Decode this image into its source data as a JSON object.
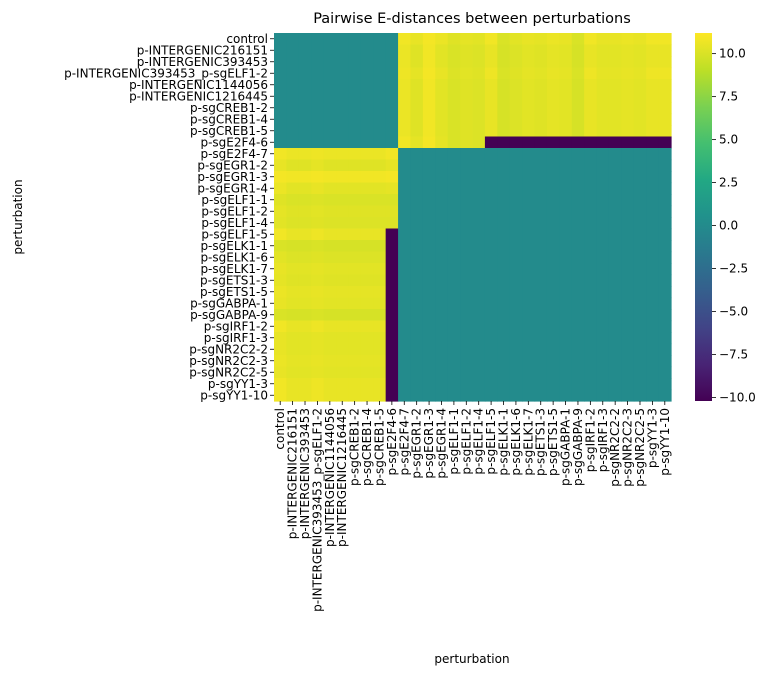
{
  "chart_data": {
    "type": "heatmap",
    "title": "Pairwise E-distances between perturbations",
    "xlabel": "perturbation",
    "ylabel": "perturbation",
    "colormap": "viridis",
    "vmin": -10.2,
    "vmax": 11.2,
    "colorbar_ticks": [
      "10.0",
      "7.5",
      "5.0",
      "2.5",
      "0.0",
      "−2.5",
      "−5.0",
      "−7.5",
      "−10.0"
    ],
    "colorbar_tick_values": [
      10.0,
      7.5,
      5.0,
      2.5,
      0.0,
      -2.5,
      -5.0,
      -7.5,
      -10.0
    ],
    "x_tick_labels": [
      "control",
      "p-INTERGENIC216151",
      "p-INTERGENIC393453",
      "p-INTERGENIC393453_p-sgELF1-2",
      "p-INTERGENIC1144056",
      "p-INTERGENIC1216445",
      "p-sgCREB1-2",
      "p-sgCREB1-4",
      "p-sgCREB1-5",
      "p-sgE2F4-6",
      "p-sgE2F4-7",
      "p-sgEGR1-2",
      "p-sgEGR1-3",
      "p-sgEGR1-4",
      "p-sgELF1-1",
      "p-sgELF1-2",
      "p-sgELF1-4",
      "p-sgELF1-5",
      "p-sgELK1-1",
      "p-sgELK1-6",
      "p-sgELK1-7",
      "p-sgETS1-3",
      "p-sgETS1-5",
      "p-sgGABPA-1",
      "p-sgGABPA-9",
      "p-sgIRF1-2",
      "p-sgIRF1-3",
      "p-sgNR2C2-2",
      "p-sgNR2C2-3",
      "p-sgNR2C2-5",
      "p-sgYY1-3",
      "p-sgYY1-10"
    ],
    "y_tick_labels": [
      "control",
      "p-INTERGENIC216151",
      "p-INTERGENIC393453",
      "p-INTERGENIC393453_p-sgELF1-2",
      "p-INTERGENIC1144056",
      "p-INTERGENIC1216445",
      "p-sgCREB1-2",
      "p-sgCREB1-4",
      "p-sgCREB1-5",
      "p-sgE2F4-6",
      "p-sgE2F4-7",
      "p-sgEGR1-2",
      "p-sgEGR1-3",
      "p-sgEGR1-4",
      "p-sgELF1-1",
      "p-sgELF1-2",
      "p-sgELF1-4",
      "p-sgELF1-5",
      "p-sgELK1-1",
      "p-sgELK1-6",
      "p-sgELK1-7",
      "p-sgETS1-3",
      "p-sgETS1-5",
      "p-sgGABPA-1",
      "p-sgGABPA-9",
      "p-sgIRF1-2",
      "p-sgIRF1-3",
      "p-sgNR2C2-2",
      "p-sgNR2C2-3",
      "p-sgNR2C2-5",
      "p-sgYY1-3",
      "p-sgYY1-10"
    ],
    "matrix": [
      [
        0.0,
        0.0,
        0.0,
        0.0,
        0.0,
        0.0,
        0.0,
        0.0,
        0.0,
        0.0,
        10.8,
        10.5,
        10.9,
        10.6,
        10.2,
        10.4,
        10.3,
        10.8,
        10.0,
        10.3,
        10.5,
        10.4,
        10.6,
        10.5,
        10.0,
        10.8,
        10.5,
        10.5,
        10.6,
        10.5,
        10.8,
        10.8
      ],
      [
        0.0,
        0.0,
        0.0,
        0.0,
        0.0,
        0.0,
        0.0,
        0.0,
        0.0,
        0.0,
        10.6,
        10.2,
        10.8,
        10.3,
        10.0,
        10.2,
        10.1,
        10.5,
        9.9,
        10.1,
        10.3,
        10.2,
        10.4,
        10.3,
        9.9,
        10.5,
        10.3,
        10.3,
        10.4,
        10.3,
        10.5,
        10.5
      ],
      [
        0.0,
        0.0,
        0.0,
        0.0,
        0.0,
        0.0,
        0.0,
        0.0,
        0.0,
        0.0,
        10.6,
        10.2,
        10.8,
        10.3,
        10.0,
        10.2,
        10.1,
        10.5,
        9.9,
        10.1,
        10.3,
        10.2,
        10.4,
        10.3,
        9.9,
        10.5,
        10.3,
        10.3,
        10.4,
        10.3,
        10.5,
        10.5
      ],
      [
        0.0,
        0.0,
        0.0,
        0.0,
        0.0,
        0.0,
        0.0,
        0.0,
        0.0,
        0.0,
        10.7,
        10.4,
        10.9,
        10.5,
        10.1,
        10.3,
        10.2,
        10.7,
        10.0,
        10.2,
        10.4,
        10.3,
        10.5,
        10.4,
        10.0,
        10.7,
        10.4,
        10.4,
        10.5,
        10.4,
        10.7,
        10.7
      ],
      [
        0.0,
        0.0,
        0.0,
        0.0,
        0.0,
        0.0,
        0.0,
        0.0,
        0.0,
        0.0,
        10.6,
        10.2,
        10.8,
        10.3,
        10.0,
        10.2,
        10.1,
        10.5,
        9.9,
        10.1,
        10.3,
        10.2,
        10.4,
        10.3,
        9.9,
        10.5,
        10.3,
        10.3,
        10.4,
        10.3,
        10.5,
        10.5
      ],
      [
        0.0,
        0.0,
        0.0,
        0.0,
        0.0,
        0.0,
        0.0,
        0.0,
        0.0,
        0.0,
        10.6,
        10.2,
        10.8,
        10.3,
        10.0,
        10.2,
        10.1,
        10.5,
        9.9,
        10.1,
        10.3,
        10.2,
        10.4,
        10.3,
        9.9,
        10.5,
        10.3,
        10.3,
        10.4,
        10.3,
        10.5,
        10.5
      ],
      [
        0.0,
        0.0,
        0.0,
        0.0,
        0.0,
        0.0,
        0.0,
        0.0,
        0.0,
        0.0,
        10.6,
        10.2,
        10.8,
        10.3,
        10.0,
        10.2,
        10.1,
        10.5,
        9.9,
        10.1,
        10.3,
        10.2,
        10.4,
        10.3,
        9.9,
        10.5,
        10.3,
        10.3,
        10.4,
        10.3,
        10.5,
        10.5
      ],
      [
        0.0,
        0.0,
        0.0,
        0.0,
        0.0,
        0.0,
        0.0,
        0.0,
        0.0,
        0.0,
        10.6,
        10.2,
        10.8,
        10.3,
        10.0,
        10.2,
        10.1,
        10.5,
        9.9,
        10.1,
        10.3,
        10.2,
        10.4,
        10.3,
        9.9,
        10.5,
        10.3,
        10.3,
        10.4,
        10.3,
        10.5,
        10.5
      ],
      [
        0.0,
        0.0,
        0.0,
        0.0,
        0.0,
        0.0,
        0.0,
        0.0,
        0.0,
        0.0,
        10.6,
        10.2,
        10.8,
        10.3,
        10.0,
        10.2,
        10.1,
        10.5,
        9.9,
        10.1,
        10.3,
        10.2,
        10.4,
        10.3,
        9.9,
        10.5,
        10.3,
        10.3,
        10.4,
        10.3,
        10.5,
        10.5
      ],
      [
        0.0,
        0.0,
        0.0,
        0.0,
        0.0,
        0.0,
        0.0,
        0.0,
        0.0,
        0.0,
        10.8,
        10.4,
        10.9,
        10.4,
        10.0,
        10.2,
        10.1,
        -10.2,
        -10.2,
        -10.2,
        -10.2,
        -10.2,
        -10.2,
        -10.2,
        -10.2,
        -10.2,
        -10.2,
        -10.2,
        -10.2,
        -10.2,
        -10.2,
        -10.2
      ],
      [
        10.8,
        10.6,
        10.6,
        10.7,
        10.6,
        10.6,
        10.6,
        10.6,
        10.6,
        10.8,
        0.0,
        0.0,
        0.0,
        0.0,
        0.0,
        0.0,
        0.0,
        0.0,
        0.0,
        0.0,
        0.0,
        0.0,
        0.0,
        0.0,
        0.0,
        0.0,
        0.0,
        0.0,
        0.0,
        0.0,
        0.0,
        0.0
      ],
      [
        10.5,
        10.2,
        10.2,
        10.4,
        10.2,
        10.2,
        10.2,
        10.2,
        10.2,
        10.4,
        0.0,
        0.0,
        0.0,
        0.0,
        0.0,
        0.0,
        0.0,
        0.0,
        0.0,
        0.0,
        0.0,
        0.0,
        0.0,
        0.0,
        0.0,
        0.0,
        0.0,
        0.0,
        0.0,
        0.0,
        0.0,
        0.0
      ],
      [
        10.9,
        10.8,
        10.8,
        10.9,
        10.8,
        10.8,
        10.8,
        10.8,
        10.8,
        10.9,
        0.0,
        0.0,
        0.0,
        0.0,
        0.0,
        0.0,
        0.0,
        0.0,
        0.0,
        0.0,
        0.0,
        0.0,
        0.0,
        0.0,
        0.0,
        0.0,
        0.0,
        0.0,
        0.0,
        0.0,
        0.0,
        0.0
      ],
      [
        10.6,
        10.3,
        10.3,
        10.5,
        10.3,
        10.3,
        10.3,
        10.3,
        10.3,
        10.4,
        0.0,
        0.0,
        0.0,
        0.0,
        0.0,
        0.0,
        0.0,
        0.0,
        0.0,
        0.0,
        0.0,
        0.0,
        0.0,
        0.0,
        0.0,
        0.0,
        0.0,
        0.0,
        0.0,
        0.0,
        0.0,
        0.0
      ],
      [
        10.2,
        10.0,
        10.0,
        10.1,
        10.0,
        10.0,
        10.0,
        10.0,
        10.0,
        10.0,
        0.0,
        0.0,
        0.0,
        0.0,
        0.0,
        0.0,
        0.0,
        0.0,
        0.0,
        0.0,
        0.0,
        0.0,
        0.0,
        0.0,
        0.0,
        0.0,
        0.0,
        0.0,
        0.0,
        0.0,
        0.0,
        0.0
      ],
      [
        10.4,
        10.2,
        10.2,
        10.3,
        10.2,
        10.2,
        10.2,
        10.2,
        10.2,
        10.2,
        0.0,
        0.0,
        0.0,
        0.0,
        0.0,
        0.0,
        0.0,
        0.0,
        0.0,
        0.0,
        0.0,
        0.0,
        0.0,
        0.0,
        0.0,
        0.0,
        0.0,
        0.0,
        0.0,
        0.0,
        0.0,
        0.0
      ],
      [
        10.3,
        10.1,
        10.1,
        10.2,
        10.1,
        10.1,
        10.1,
        10.1,
        10.1,
        10.1,
        0.0,
        0.0,
        0.0,
        0.0,
        0.0,
        0.0,
        0.0,
        0.0,
        0.0,
        0.0,
        0.0,
        0.0,
        0.0,
        0.0,
        0.0,
        0.0,
        0.0,
        0.0,
        0.0,
        0.0,
        0.0,
        0.0
      ],
      [
        10.8,
        10.5,
        10.5,
        10.7,
        10.5,
        10.5,
        10.5,
        10.5,
        10.5,
        -10.2,
        0.0,
        0.0,
        0.0,
        0.0,
        0.0,
        0.0,
        0.0,
        0.0,
        0.0,
        0.0,
        0.0,
        0.0,
        0.0,
        0.0,
        0.0,
        0.0,
        0.0,
        0.0,
        0.0,
        0.0,
        0.0,
        0.0
      ],
      [
        10.0,
        9.9,
        9.9,
        10.0,
        9.9,
        9.9,
        9.9,
        9.9,
        9.9,
        -10.2,
        0.0,
        0.0,
        0.0,
        0.0,
        0.0,
        0.0,
        0.0,
        0.0,
        0.0,
        0.0,
        0.0,
        0.0,
        0.0,
        0.0,
        0.0,
        0.0,
        0.0,
        0.0,
        0.0,
        0.0,
        0.0,
        0.0
      ],
      [
        10.3,
        10.1,
        10.1,
        10.2,
        10.1,
        10.1,
        10.1,
        10.1,
        10.1,
        -10.2,
        0.0,
        0.0,
        0.0,
        0.0,
        0.0,
        0.0,
        0.0,
        0.0,
        0.0,
        0.0,
        0.0,
        0.0,
        0.0,
        0.0,
        0.0,
        0.0,
        0.0,
        0.0,
        0.0,
        0.0,
        0.0,
        0.0
      ],
      [
        10.5,
        10.3,
        10.3,
        10.4,
        10.3,
        10.3,
        10.3,
        10.3,
        10.3,
        -10.2,
        0.0,
        0.0,
        0.0,
        0.0,
        0.0,
        0.0,
        0.0,
        0.0,
        0.0,
        0.0,
        0.0,
        0.0,
        0.0,
        0.0,
        0.0,
        0.0,
        0.0,
        0.0,
        0.0,
        0.0,
        0.0,
        0.0
      ],
      [
        10.4,
        10.2,
        10.2,
        10.3,
        10.2,
        10.2,
        10.2,
        10.2,
        10.2,
        -10.2,
        0.0,
        0.0,
        0.0,
        0.0,
        0.0,
        0.0,
        0.0,
        0.0,
        0.0,
        0.0,
        0.0,
        0.0,
        0.0,
        0.0,
        0.0,
        0.0,
        0.0,
        0.0,
        0.0,
        0.0,
        0.0,
        0.0
      ],
      [
        10.6,
        10.4,
        10.4,
        10.5,
        10.4,
        10.4,
        10.4,
        10.4,
        10.4,
        -10.2,
        0.0,
        0.0,
        0.0,
        0.0,
        0.0,
        0.0,
        0.0,
        0.0,
        0.0,
        0.0,
        0.0,
        0.0,
        0.0,
        0.0,
        0.0,
        0.0,
        0.0,
        0.0,
        0.0,
        0.0,
        0.0,
        0.0
      ],
      [
        10.5,
        10.3,
        10.3,
        10.4,
        10.3,
        10.3,
        10.3,
        10.3,
        10.3,
        -10.2,
        0.0,
        0.0,
        0.0,
        0.0,
        0.0,
        0.0,
        0.0,
        0.0,
        0.0,
        0.0,
        0.0,
        0.0,
        0.0,
        0.0,
        0.0,
        0.0,
        0.0,
        0.0,
        0.0,
        0.0,
        0.0,
        0.0
      ],
      [
        10.0,
        9.9,
        9.9,
        10.0,
        9.9,
        9.9,
        9.9,
        9.9,
        9.9,
        -10.2,
        0.0,
        0.0,
        0.0,
        0.0,
        0.0,
        0.0,
        0.0,
        0.0,
        0.0,
        0.0,
        0.0,
        0.0,
        0.0,
        0.0,
        0.0,
        0.0,
        0.0,
        0.0,
        0.0,
        0.0,
        0.0,
        0.0
      ],
      [
        10.8,
        10.5,
        10.5,
        10.7,
        10.5,
        10.5,
        10.5,
        10.5,
        10.5,
        -10.2,
        0.0,
        0.0,
        0.0,
        0.0,
        0.0,
        0.0,
        0.0,
        0.0,
        0.0,
        0.0,
        0.0,
        0.0,
        0.0,
        0.0,
        0.0,
        0.0,
        0.0,
        0.0,
        0.0,
        0.0,
        0.0,
        0.0
      ],
      [
        10.5,
        10.3,
        10.3,
        10.4,
        10.3,
        10.3,
        10.3,
        10.3,
        10.3,
        -10.2,
        0.0,
        0.0,
        0.0,
        0.0,
        0.0,
        0.0,
        0.0,
        0.0,
        0.0,
        0.0,
        0.0,
        0.0,
        0.0,
        0.0,
        0.0,
        0.0,
        0.0,
        0.0,
        0.0,
        0.0,
        0.0,
        0.0
      ],
      [
        10.5,
        10.3,
        10.3,
        10.4,
        10.3,
        10.3,
        10.3,
        10.3,
        10.3,
        -10.2,
        0.0,
        0.0,
        0.0,
        0.0,
        0.0,
        0.0,
        0.0,
        0.0,
        0.0,
        0.0,
        0.0,
        0.0,
        0.0,
        0.0,
        0.0,
        0.0,
        0.0,
        0.0,
        0.0,
        0.0,
        0.0,
        0.0
      ],
      [
        10.6,
        10.4,
        10.4,
        10.5,
        10.4,
        10.4,
        10.4,
        10.4,
        10.4,
        -10.2,
        0.0,
        0.0,
        0.0,
        0.0,
        0.0,
        0.0,
        0.0,
        0.0,
        0.0,
        0.0,
        0.0,
        0.0,
        0.0,
        0.0,
        0.0,
        0.0,
        0.0,
        0.0,
        0.0,
        0.0,
        0.0,
        0.0
      ],
      [
        10.5,
        10.3,
        10.3,
        10.4,
        10.3,
        10.3,
        10.3,
        10.3,
        10.3,
        -10.2,
        0.0,
        0.0,
        0.0,
        0.0,
        0.0,
        0.0,
        0.0,
        0.0,
        0.0,
        0.0,
        0.0,
        0.0,
        0.0,
        0.0,
        0.0,
        0.0,
        0.0,
        0.0,
        0.0,
        0.0,
        0.0,
        0.0
      ],
      [
        10.8,
        10.5,
        10.5,
        10.7,
        10.5,
        10.5,
        10.5,
        10.5,
        10.5,
        -10.2,
        0.0,
        0.0,
        0.0,
        0.0,
        0.0,
        0.0,
        0.0,
        0.0,
        0.0,
        0.0,
        0.0,
        0.0,
        0.0,
        0.0,
        0.0,
        0.0,
        0.0,
        0.0,
        0.0,
        0.0,
        0.0,
        0.0
      ],
      [
        10.8,
        10.5,
        10.5,
        10.7,
        10.5,
        10.5,
        10.5,
        10.5,
        10.5,
        -10.2,
        0.0,
        0.0,
        0.0,
        0.0,
        0.0,
        0.0,
        0.0,
        0.0,
        0.0,
        0.0,
        0.0,
        0.0,
        0.0,
        0.0,
        0.0,
        0.0,
        0.0,
        0.0,
        0.0,
        0.0,
        0.0,
        0.0
      ]
    ]
  }
}
